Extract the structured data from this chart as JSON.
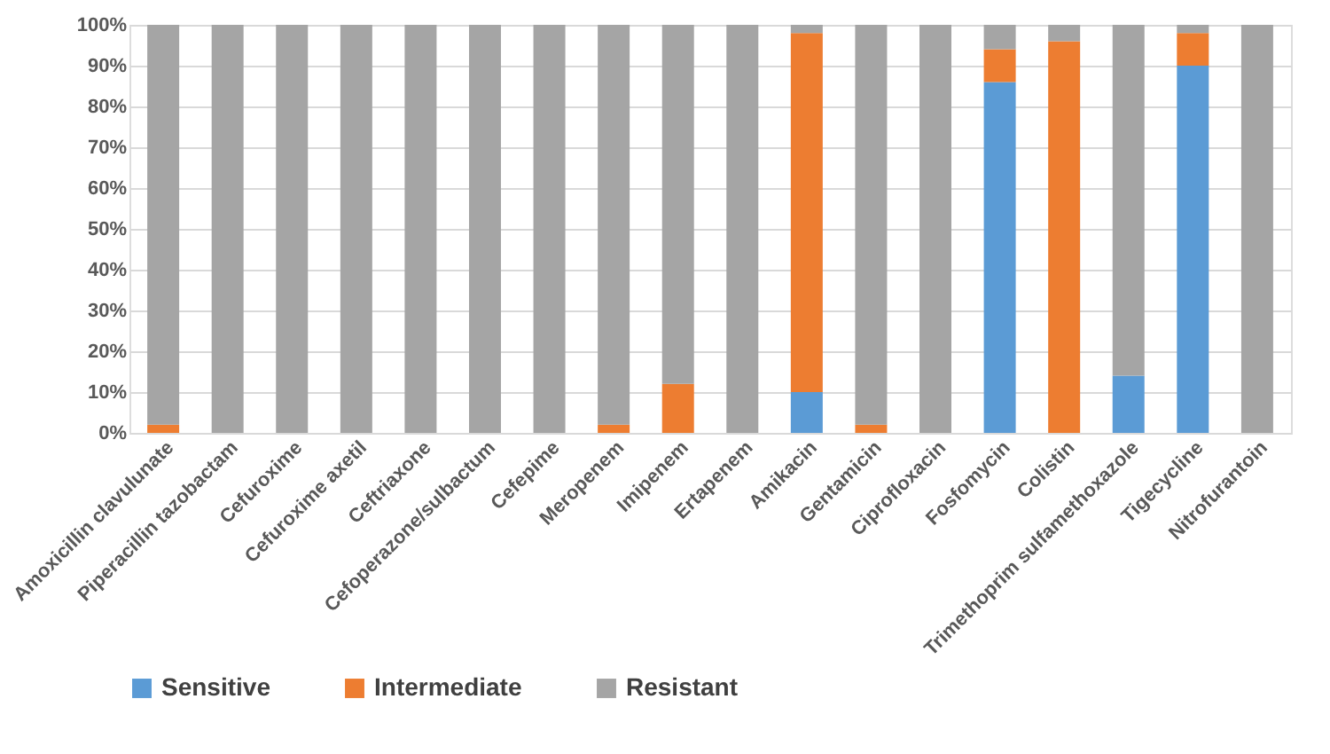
{
  "chart_data": {
    "type": "bar",
    "stacked": true,
    "categories": [
      "Amoxicillin clavulunate",
      "Piperacillin tazobactam",
      "Cefuroxime",
      "Cefuroxime axetil",
      "Ceftriaxone",
      "Cefoperazone/sulbactum",
      "Cefepime",
      "Meropenem",
      "Imipenem",
      "Ertapenem",
      "Amikacin",
      "Gentamicin",
      "Ciprofloxacin",
      "Fosfomycin",
      "Colistin",
      "Trimethoprim sulfamethoxazole",
      "Tigecycline",
      "Nitrofurantoin"
    ],
    "series": [
      {
        "name": "Sensitive",
        "color": "#5b9bd5",
        "values": [
          0,
          0,
          0,
          0,
          0,
          0,
          0,
          0,
          0,
          0,
          10,
          0,
          0,
          86,
          0,
          14,
          90,
          0
        ]
      },
      {
        "name": "Intermediate",
        "color": "#ed7d31",
        "values": [
          2,
          0,
          0,
          0,
          0,
          0,
          0,
          2,
          12,
          0,
          88,
          2,
          0,
          8,
          96,
          0,
          8,
          0
        ]
      },
      {
        "name": "Resistant",
        "color": "#a5a5a5",
        "values": [
          98,
          100,
          100,
          100,
          100,
          100,
          100,
          98,
          88,
          100,
          2,
          98,
          100,
          6,
          4,
          86,
          2,
          100
        ]
      }
    ],
    "ylim": [
      0,
      100
    ],
    "yticks": [
      {
        "value": 0,
        "label": "0%"
      },
      {
        "value": 10,
        "label": "10%"
      },
      {
        "value": 20,
        "label": "20%"
      },
      {
        "value": 30,
        "label": "30%"
      },
      {
        "value": 40,
        "label": "40%"
      },
      {
        "value": 50,
        "label": "50%"
      },
      {
        "value": 60,
        "label": "60%"
      },
      {
        "value": 70,
        "label": "70%"
      },
      {
        "value": 80,
        "label": "80%"
      },
      {
        "value": 90,
        "label": "90%"
      },
      {
        "value": 100,
        "label": "100%"
      }
    ],
    "grid": "y",
    "legend": "bottom"
  }
}
